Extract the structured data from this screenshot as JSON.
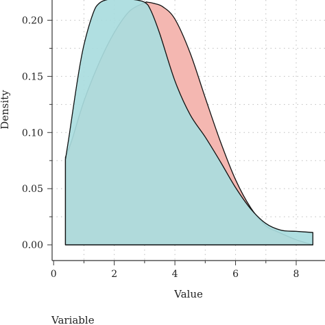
{
  "chart_data": {
    "type": "area",
    "title": "",
    "xlabel": "Value",
    "ylabel": "Density",
    "xlim": [
      -0.05,
      8.95
    ],
    "ylim": [
      -0.014,
      0.218
    ],
    "grid": true,
    "x_ticks": [
      "0",
      "2",
      "4",
      "6",
      "8"
    ],
    "y_ticks": [
      "0.00",
      "0.05",
      "0.10",
      "0.15",
      "0.20"
    ],
    "legend": {
      "title": "Variable",
      "position": "bottom"
    },
    "series": [
      {
        "color": "#f4b7b1",
        "x": [
          0.39,
          0.6,
          1.0,
          1.5,
          2.0,
          2.5,
          3.0,
          3.1,
          3.3,
          3.6,
          4.0,
          4.5,
          5.0,
          5.5,
          6.0,
          6.5,
          7.0,
          7.4,
          8.0,
          8.55
        ],
        "y": [
          0.078,
          0.093,
          0.128,
          0.162,
          0.189,
          0.208,
          0.2155,
          0.216,
          0.215,
          0.212,
          0.201,
          0.171,
          0.131,
          0.092,
          0.058,
          0.033,
          0.017,
          0.0115,
          0.0045,
          0.0
        ]
      },
      {
        "color": "#a9dcde",
        "x": [
          0.39,
          0.5,
          0.8,
          1.0,
          1.3,
          1.5,
          1.8,
          2.2,
          2.6,
          3.0,
          3.2,
          3.5,
          4.0,
          4.5,
          5.0,
          5.5,
          6.0,
          6.5,
          7.0,
          7.5,
          8.0,
          8.55
        ],
        "y": [
          0.076,
          0.095,
          0.149,
          0.178,
          0.206,
          0.215,
          0.2185,
          0.2185,
          0.2185,
          0.216,
          0.209,
          0.188,
          0.146,
          0.116,
          0.096,
          0.074,
          0.051,
          0.032,
          0.019,
          0.013,
          0.012,
          0.011
        ]
      }
    ]
  }
}
